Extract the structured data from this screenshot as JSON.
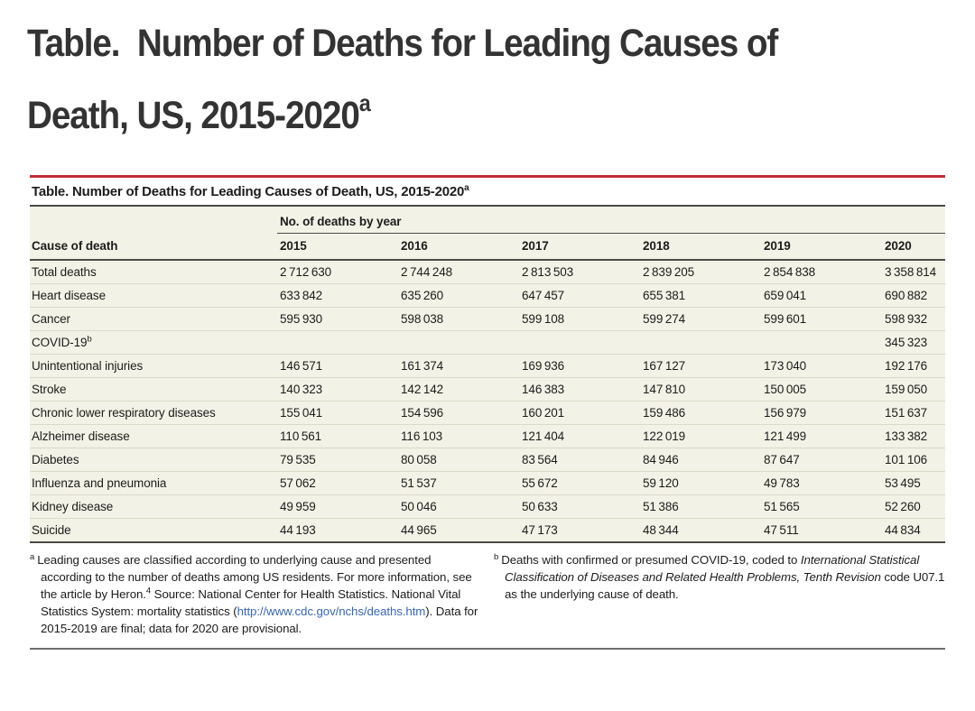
{
  "heading": {
    "line1": "Table.  Number of Deaths for Leading Causes of",
    "line2": "Death, US, 2015-2020",
    "superscript": "a"
  },
  "table": {
    "title": "Table. Number of Deaths for Leading Causes of Death, US, 2015-2020",
    "title_superscript": "a",
    "spanner": "No. of deaths by year",
    "col_header_label": "Cause of death",
    "years": [
      "2015",
      "2016",
      "2017",
      "2018",
      "2019",
      "2020"
    ],
    "rows": [
      {
        "cause": "Total deaths",
        "sup": "",
        "values": [
          "2 712 630",
          "2 744 248",
          "2 813 503",
          "2 839 205",
          "2 854 838",
          "3 358 814"
        ]
      },
      {
        "cause": "Heart disease",
        "sup": "",
        "values": [
          "633 842",
          "635 260",
          "647 457",
          "655 381",
          "659 041",
          "690 882"
        ]
      },
      {
        "cause": "Cancer",
        "sup": "",
        "values": [
          "595 930",
          "598 038",
          "599 108",
          "599 274",
          "599 601",
          "598 932"
        ]
      },
      {
        "cause": "COVID-19",
        "sup": "b",
        "values": [
          "",
          "",
          "",
          "",
          "",
          "345 323"
        ]
      },
      {
        "cause": "Unintentional injuries",
        "sup": "",
        "values": [
          "146 571",
          "161 374",
          "169 936",
          "167 127",
          "173 040",
          "192 176"
        ]
      },
      {
        "cause": "Stroke",
        "sup": "",
        "values": [
          "140 323",
          "142 142",
          "146 383",
          "147 810",
          "150 005",
          "159 050"
        ]
      },
      {
        "cause": "Chronic lower respiratory diseases",
        "sup": "",
        "values": [
          "155 041",
          "154 596",
          "160 201",
          "159 486",
          "156 979",
          "151 637"
        ]
      },
      {
        "cause": "Alzheimer disease",
        "sup": "",
        "values": [
          "110 561",
          "116 103",
          "121 404",
          "122 019",
          "121 499",
          "133 382"
        ]
      },
      {
        "cause": "Diabetes",
        "sup": "",
        "values": [
          "79 535",
          "80 058",
          "83 564",
          "84 946",
          "87 647",
          "101 106"
        ]
      },
      {
        "cause": "Influenza and pneumonia",
        "sup": "",
        "values": [
          "57 062",
          "51 537",
          "55 672",
          "59 120",
          "49 783",
          "53 495"
        ]
      },
      {
        "cause": "Kidney disease",
        "sup": "",
        "values": [
          "49 959",
          "50 046",
          "50 633",
          "51 386",
          "51 565",
          "52 260"
        ]
      },
      {
        "cause": "Suicide",
        "sup": "",
        "values": [
          "44 193",
          "44 965",
          "47 173",
          "48 344",
          "47 511",
          "44 834"
        ]
      }
    ],
    "footnotes": [
      {
        "marker": "a",
        "segments": [
          {
            "text": "Leading causes are classified according to underlying cause and presented according to the number of deaths among US residents. For more information, see the article by Heron.",
            "style": "normal"
          },
          {
            "text": "4",
            "style": "sup"
          },
          {
            "text": " Source: National Center for Health Statistics. National Vital Statistics System: mortality statistics (",
            "style": "normal"
          },
          {
            "text": "http://www.cdc.gov/nchs/deaths.htm",
            "style": "link"
          },
          {
            "text": "). Data for 2015-2019 are final; data for 2020 are provisional.",
            "style": "normal"
          }
        ]
      },
      {
        "marker": "b",
        "segments": [
          {
            "text": "Deaths with confirmed or presumed COVID-19, coded to ",
            "style": "normal"
          },
          {
            "text": "International Statistical Classification of Diseases and Related Health Problems, Tenth Revision",
            "style": "italic"
          },
          {
            "text": " code U07.1 as the underlying cause of death.",
            "style": "normal"
          }
        ]
      }
    ],
    "colors": {
      "accent_red": "#C12E35",
      "table_background": "#F3F2E6",
      "dark_rule": "#4A4A4A",
      "row_separator": "#DBD9C6",
      "link_blue": "#3A67AE",
      "text": "#1C1C1C"
    }
  }
}
